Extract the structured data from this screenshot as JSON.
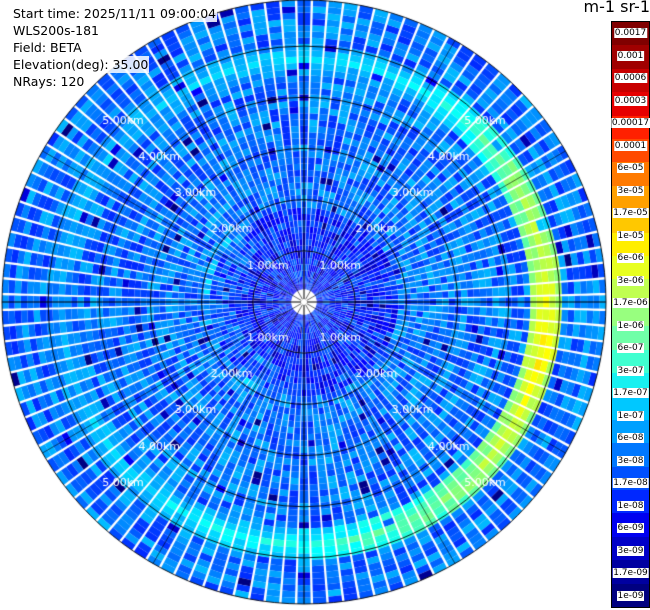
{
  "info": {
    "start_time": "Start time: 2025/11/11 09:00:04",
    "instrument": "WLS200s-181",
    "field": "Field: BETA",
    "elevation": "Elevation(deg): 35.00",
    "nrays": "NRays: 120"
  },
  "colorbar": {
    "title": "m-1 sr-1",
    "labels": [
      "0.0017",
      "0.001",
      "0.0006",
      "0.0003",
      "0.00017",
      "0.0001",
      "6e-05",
      "3e-05",
      "1.7e-05",
      "1e-05",
      "6e-06",
      "3e-06",
      "1.7e-06",
      "1e-06",
      "6e-07",
      "3e-07",
      "1.7e-07",
      "1e-07",
      "6e-08",
      "3e-08",
      "1.7e-08",
      "1e-08",
      "6e-09",
      "3e-09",
      "1.7e-09",
      "1e-09"
    ],
    "colors": [
      "#800000",
      "#a00000",
      "#c80000",
      "#e60000",
      "#ff2000",
      "#ff4a00",
      "#ff7a00",
      "#ffa000",
      "#ffc800",
      "#ffee00",
      "#e8ff20",
      "#c0ff50",
      "#98ff7f",
      "#70ffa8",
      "#40ffd0",
      "#18f0f0",
      "#00c8ff",
      "#00a0ff",
      "#0078ff",
      "#0050ff",
      "#0028ff",
      "#0000f0",
      "#0000c8",
      "#0000a0",
      "#000080"
    ]
  },
  "chart_data": {
    "type": "heatmap",
    "projection": "polar-ppi",
    "elevation_deg": 35.0,
    "n_rays": 120,
    "range_rings_km": [
      1.0,
      2.0,
      3.0,
      4.0,
      5.0
    ],
    "range_ring_labels": [
      "1.00km",
      "2.00km",
      "3.00km",
      "4.00km",
      "5.00km"
    ],
    "max_range_km": 5.9,
    "colormap": "jet",
    "colorbar_scale": "log",
    "value_range": [
      1e-09,
      0.0017
    ],
    "background_beta": 3e-08,
    "enhanced_band": {
      "range_km": [
        4.4,
        5.1
      ],
      "peak_azimuth_deg": 100,
      "peak_beta": 1e-05,
      "description_beta_by_sector": [
        {
          "azimuth_deg": 30,
          "beta": 1.7e-07
        },
        {
          "azimuth_deg": 60,
          "beta": 1.7e-06
        },
        {
          "azimuth_deg": 100,
          "beta": 1e-05
        },
        {
          "azimuth_deg": 140,
          "beta": 1.7e-06
        },
        {
          "azimuth_deg": 180,
          "beta": 3e-07
        },
        {
          "azimuth_deg": 270,
          "beta": 6e-08
        }
      ]
    }
  }
}
